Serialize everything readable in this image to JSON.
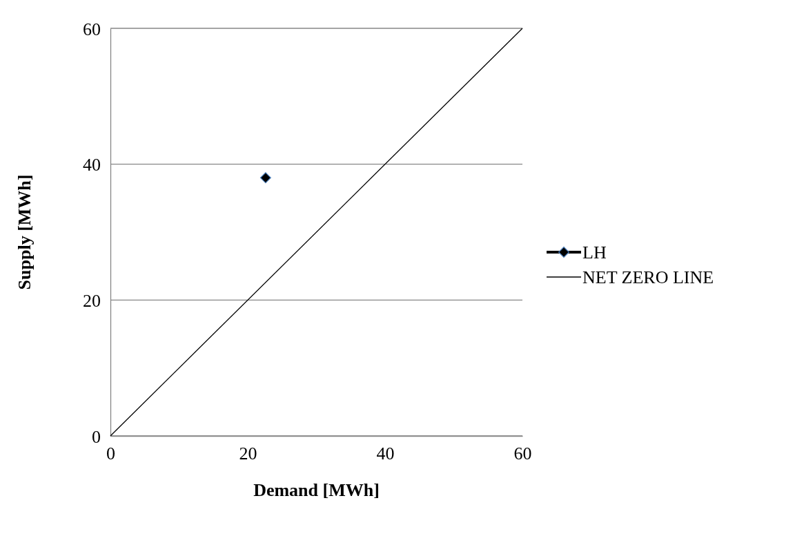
{
  "chart_data": {
    "type": "line",
    "xlabel": "Demand [MWh]",
    "ylabel": "Supply [MWh]",
    "xlim": [
      0,
      60
    ],
    "ylim": [
      0,
      60
    ],
    "xticks": [
      0,
      20,
      40,
      60
    ],
    "yticks": [
      0,
      20,
      40,
      60
    ],
    "grid": "y",
    "legend": "right",
    "series": [
      {
        "name": "LH",
        "color": "#000000",
        "marker": "diamond",
        "x": [
          22.6
        ],
        "values": [
          38
        ]
      },
      {
        "name": "NET ZERO LINE",
        "color": "#000000",
        "marker": "none",
        "x": [
          0,
          60
        ],
        "values": [
          0,
          60
        ]
      }
    ]
  }
}
